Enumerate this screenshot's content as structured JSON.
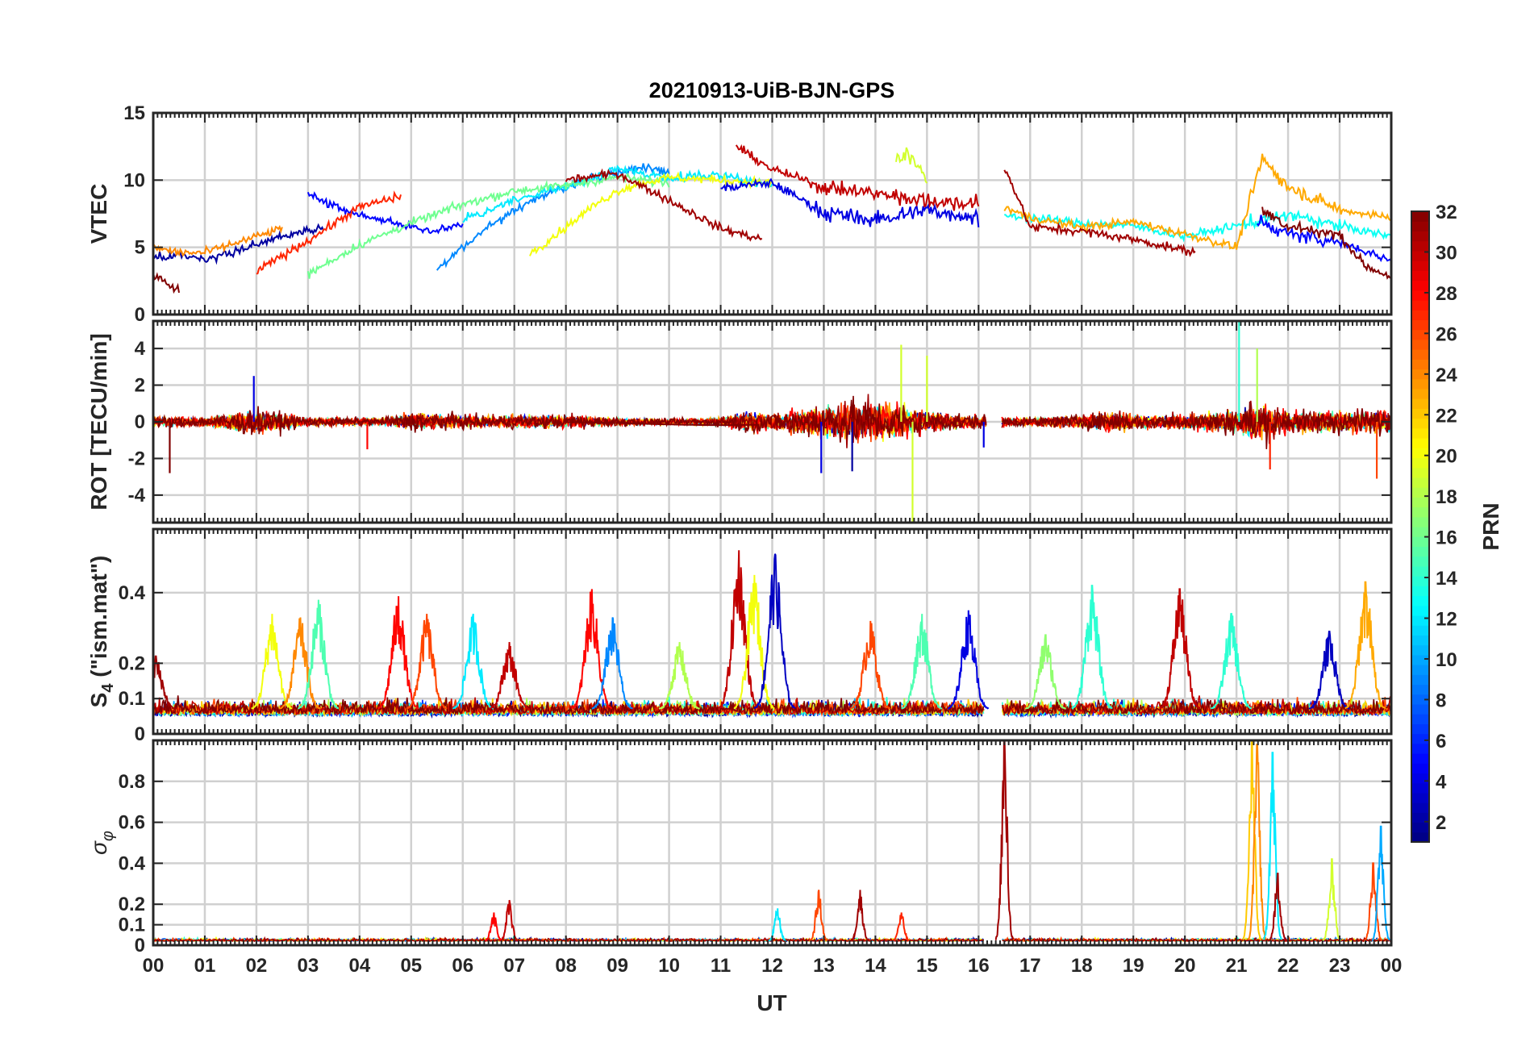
{
  "figure": {
    "title": "20210913-UiB-BJN-GPS",
    "xlabel": "UT"
  },
  "chart_data": [
    {
      "type": "line",
      "panel": "vtec",
      "ylabel": "VTEC",
      "ylim": [
        0,
        15
      ],
      "yticks": [
        0,
        5,
        10,
        15
      ],
      "xlim": [
        0,
        24
      ],
      "grid": true,
      "series": [
        {
          "prn": 2,
          "x": [
            0.0,
            0.5,
            1.0,
            1.5,
            2.0,
            2.5,
            3.0,
            3.3
          ],
          "y": [
            4.2,
            4.4,
            4.0,
            4.6,
            5.2,
            5.8,
            6.2,
            6.5
          ]
        },
        {
          "prn": 5,
          "x": [
            3.0,
            3.5,
            4.0,
            4.5,
            5.0,
            5.5,
            6.0
          ],
          "y": [
            9.0,
            8.0,
            7.4,
            7.0,
            6.5,
            6.2,
            6.8
          ]
        },
        {
          "prn": 9,
          "x": [
            5.5,
            6.0,
            6.5,
            7.0,
            7.5,
            8.0,
            8.5,
            9.0,
            9.5,
            10.0
          ],
          "y": [
            3.4,
            5.0,
            6.5,
            7.8,
            8.8,
            9.5,
            10.2,
            10.6,
            10.9,
            10.6
          ]
        },
        {
          "prn": 12,
          "x": [
            6.0,
            7.0,
            8.0,
            9.0,
            10.0,
            11.0,
            12.0
          ],
          "y": [
            7.0,
            8.5,
            9.5,
            10.8,
            10.2,
            10.4,
            9.6
          ]
        },
        {
          "prn": 16,
          "x": [
            3.0,
            4.0,
            5.0,
            6.0,
            7.0,
            8.0,
            9.0,
            10.0
          ],
          "y": [
            3.0,
            5.2,
            6.8,
            8.2,
            9.2,
            9.6,
            10.2,
            9.8
          ]
        },
        {
          "prn": 20,
          "x": [
            7.3,
            8.0,
            8.5,
            9.0,
            9.5,
            10.0,
            11.0,
            12.0
          ],
          "y": [
            4.5,
            6.5,
            8.0,
            9.2,
            9.8,
            10.2,
            10.0,
            9.8
          ]
        },
        {
          "prn": 24,
          "x": [
            0.0,
            0.5,
            1.0,
            1.5,
            2.0,
            2.5
          ],
          "y": [
            5.0,
            4.6,
            4.6,
            5.2,
            5.8,
            6.4
          ]
        },
        {
          "prn": 27,
          "x": [
            2.0,
            3.0,
            4.0,
            4.8
          ],
          "y": [
            3.2,
            5.5,
            8.0,
            8.8
          ]
        },
        {
          "prn": 31,
          "x": [
            8.0,
            9.0,
            10.0,
            11.0,
            11.8
          ],
          "y": [
            10.0,
            10.5,
            8.5,
            6.4,
            5.6
          ]
        },
        {
          "prn": 32,
          "x": [
            0.0,
            0.3,
            0.5
          ],
          "y": [
            3.0,
            2.2,
            1.8
          ]
        },
        {
          "prn": 4,
          "x": [
            11.0,
            12.0,
            13.0,
            14.0,
            15.0,
            16.0
          ],
          "y": [
            9.4,
            9.8,
            7.6,
            7.0,
            7.8,
            7.2
          ]
        },
        {
          "prn": 19,
          "x": [
            14.4,
            14.6,
            14.8,
            15.0
          ],
          "y": [
            11.5,
            12.2,
            11.0,
            10.0
          ]
        },
        {
          "prn": 30,
          "x": [
            11.3,
            12.0,
            13.0,
            14.0,
            15.0,
            16.0
          ],
          "y": [
            12.5,
            10.8,
            9.5,
            9.0,
            8.5,
            8.2
          ]
        },
        {
          "prn": 13,
          "x": [
            16.5,
            17.0,
            18.0,
            19.0,
            20.0,
            21.0,
            22.0,
            23.0,
            24.0
          ],
          "y": [
            7.4,
            7.2,
            6.8,
            6.6,
            5.8,
            6.6,
            7.4,
            6.6,
            5.8
          ]
        },
        {
          "prn": 23,
          "x": [
            16.5,
            17.0,
            18.0,
            19.0,
            20.0,
            21.0,
            21.5,
            22.0,
            23.0,
            24.0
          ],
          "y": [
            8.0,
            7.2,
            6.5,
            6.9,
            6.0,
            5.0,
            11.6,
            9.5,
            7.8,
            7.2
          ]
        },
        {
          "prn": 31,
          "x": [
            16.5,
            17.0,
            18.0,
            19.0,
            20.2
          ],
          "y": [
            11.0,
            6.5,
            6.2,
            5.6,
            4.6
          ]
        },
        {
          "prn": 5,
          "x": [
            21.4,
            22.0,
            23.0,
            24.0
          ],
          "y": [
            7.0,
            6.0,
            5.4,
            4.0
          ]
        },
        {
          "prn": 32,
          "x": [
            21.5,
            22.0,
            23.0,
            23.5,
            24.0
          ],
          "y": [
            7.8,
            6.6,
            5.9,
            3.6,
            2.8
          ]
        }
      ]
    },
    {
      "type": "line",
      "panel": "rot",
      "ylabel": "ROT [TECU/min]",
      "ylim": [
        -5.5,
        5.5
      ],
      "yticks": [
        -4,
        -2,
        0,
        2,
        4
      ],
      "xlim": [
        0,
        24
      ],
      "grid": true,
      "noise_profile": {
        "x": [
          0,
          1,
          1.8,
          2.2,
          3,
          4.5,
          5,
          6.5,
          7,
          8,
          9,
          10,
          11,
          11.5,
          12,
          12.8,
          13.5,
          14.5,
          15,
          16,
          16.5,
          17,
          18,
          18.8,
          19,
          20,
          21,
          21.3,
          21.6,
          22,
          23,
          24
        ],
        "amp": [
          0.4,
          0.3,
          0.9,
          0.9,
          0.3,
          0.3,
          0.7,
          0.4,
          0.5,
          0.5,
          0.3,
          0.2,
          0.3,
          0.9,
          0.6,
          1.2,
          1.6,
          1.4,
          0.9,
          0.5,
          0.4,
          0.3,
          0.5,
          0.8,
          0.5,
          0.6,
          1.0,
          1.6,
          1.4,
          0.8,
          0.9,
          0.9
        ]
      },
      "spikes": [
        {
          "x": 0.32,
          "y": -2.8,
          "prn": 32
        },
        {
          "x": 1.95,
          "y": 2.5,
          "prn": 4
        },
        {
          "x": 4.15,
          "y": -1.5,
          "prn": 28
        },
        {
          "x": 12.95,
          "y": -2.8,
          "prn": 4
        },
        {
          "x": 13.55,
          "y": -2.7,
          "prn": 2
        },
        {
          "x": 14.72,
          "y": -5.5,
          "prn": 19
        },
        {
          "x": 14.5,
          "y": 4.2,
          "prn": 19
        },
        {
          "x": 15.0,
          "y": 3.6,
          "prn": 19
        },
        {
          "x": 16.1,
          "y": -1.4,
          "prn": 4
        },
        {
          "x": 21.05,
          "y": 5.5,
          "prn": 14
        },
        {
          "x": 21.4,
          "y": 4.0,
          "prn": 18
        },
        {
          "x": 21.65,
          "y": -2.6,
          "prn": 27
        },
        {
          "x": 23.72,
          "y": -3.1,
          "prn": 26
        }
      ]
    },
    {
      "type": "line",
      "panel": "s4",
      "ylabel": "S4 (\"ism.mat\")",
      "ylabel_main": "S",
      "ylabel_sub": "4",
      "ylabel_rest": " (\"ism.mat\")",
      "ylim": [
        0,
        0.58
      ],
      "yticks": [
        0,
        0.1,
        0.2,
        0.4
      ],
      "xlim": [
        0,
        24
      ],
      "grid": true,
      "baseline": 0.07,
      "peaks": [
        {
          "x": 0.05,
          "y": 0.22,
          "prn": 31
        },
        {
          "x": 2.3,
          "y": 0.34,
          "prn": 20
        },
        {
          "x": 2.85,
          "y": 0.33,
          "prn": 24
        },
        {
          "x": 3.2,
          "y": 0.38,
          "prn": 15
        },
        {
          "x": 4.75,
          "y": 0.39,
          "prn": 28
        },
        {
          "x": 5.3,
          "y": 0.34,
          "prn": 26
        },
        {
          "x": 6.2,
          "y": 0.34,
          "prn": 12
        },
        {
          "x": 6.9,
          "y": 0.26,
          "prn": 30
        },
        {
          "x": 8.5,
          "y": 0.41,
          "prn": 28
        },
        {
          "x": 8.9,
          "y": 0.33,
          "prn": 9
        },
        {
          "x": 10.2,
          "y": 0.26,
          "prn": 18
        },
        {
          "x": 11.35,
          "y": 0.52,
          "prn": 30
        },
        {
          "x": 11.65,
          "y": 0.45,
          "prn": 20
        },
        {
          "x": 12.05,
          "y": 0.51,
          "prn": 3
        },
        {
          "x": 13.9,
          "y": 0.32,
          "prn": 26
        },
        {
          "x": 14.9,
          "y": 0.34,
          "prn": 15
        },
        {
          "x": 15.8,
          "y": 0.35,
          "prn": 4
        },
        {
          "x": 17.3,
          "y": 0.28,
          "prn": 17
        },
        {
          "x": 18.2,
          "y": 0.42,
          "prn": 14
        },
        {
          "x": 19.9,
          "y": 0.41,
          "prn": 30
        },
        {
          "x": 20.9,
          "y": 0.34,
          "prn": 14
        },
        {
          "x": 22.8,
          "y": 0.29,
          "prn": 3
        },
        {
          "x": 23.5,
          "y": 0.43,
          "prn": 23
        }
      ]
    },
    {
      "type": "line",
      "panel": "sigma_phi",
      "ylabel": "σφ",
      "ylabel_main": "σ",
      "ylabel_sub": "φ",
      "ylim": [
        0,
        1
      ],
      "yticks": [
        0,
        0.1,
        0.2,
        0.4,
        0.6,
        0.8
      ],
      "xlim": [
        0,
        24
      ],
      "grid": true,
      "baseline": 0.02,
      "peaks": [
        {
          "x": 6.9,
          "y": 0.22,
          "prn": 30
        },
        {
          "x": 6.6,
          "y": 0.16,
          "prn": 28
        },
        {
          "x": 12.1,
          "y": 0.18,
          "prn": 12
        },
        {
          "x": 12.9,
          "y": 0.27,
          "prn": 26
        },
        {
          "x": 13.7,
          "y": 0.27,
          "prn": 31
        },
        {
          "x": 14.5,
          "y": 0.16,
          "prn": 27
        },
        {
          "x": 16.5,
          "y": 1.0,
          "prn": 31
        },
        {
          "x": 21.3,
          "y": 1.0,
          "prn": 22
        },
        {
          "x": 21.4,
          "y": 0.98,
          "prn": 24
        },
        {
          "x": 21.7,
          "y": 0.94,
          "prn": 12
        },
        {
          "x": 21.8,
          "y": 0.35,
          "prn": 31
        },
        {
          "x": 22.85,
          "y": 0.42,
          "prn": 19
        },
        {
          "x": 23.65,
          "y": 0.4,
          "prn": 26
        },
        {
          "x": 23.8,
          "y": 0.58,
          "prn": 10
        }
      ]
    }
  ],
  "xaxis": {
    "ticks": [
      0,
      1,
      2,
      3,
      4,
      5,
      6,
      7,
      8,
      9,
      10,
      11,
      12,
      13,
      14,
      15,
      16,
      17,
      18,
      19,
      20,
      21,
      22,
      23,
      24
    ],
    "tick_labels": [
      "00",
      "01",
      "02",
      "03",
      "04",
      "05",
      "06",
      "07",
      "08",
      "09",
      "10",
      "11",
      "12",
      "13",
      "14",
      "15",
      "16",
      "17",
      "18",
      "19",
      "20",
      "21",
      "22",
      "23",
      "00"
    ]
  },
  "colorbar": {
    "label": "PRN",
    "colormap": "jet",
    "range": [
      1,
      32
    ],
    "ticks": [
      2,
      4,
      6,
      8,
      10,
      12,
      14,
      16,
      18,
      20,
      22,
      24,
      26,
      28,
      30,
      32
    ],
    "tick_labels": [
      "2",
      "4",
      "6",
      "8",
      "10",
      "12",
      "14",
      "16",
      "18",
      "20",
      "22",
      "24",
      "26",
      "28",
      "30",
      "32"
    ]
  }
}
